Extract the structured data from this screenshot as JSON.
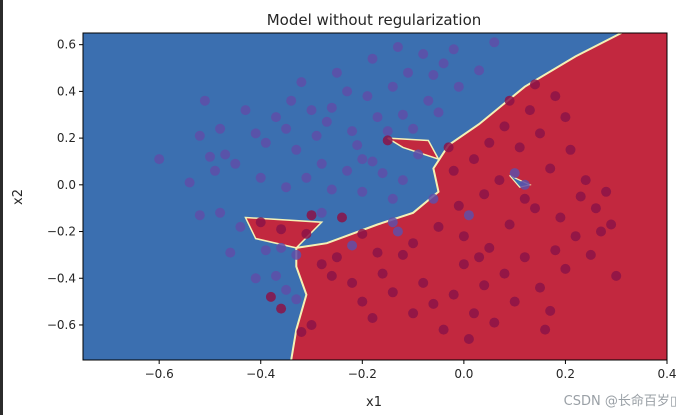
{
  "chart_data": {
    "type": "scatter",
    "title": "Model without regularization",
    "xlabel": "x1",
    "ylabel": "x2",
    "xlim": [
      -0.75,
      0.4
    ],
    "ylim": [
      -0.75,
      0.65
    ],
    "xticks": [
      "−0.6",
      "−0.4",
      "−0.2",
      "0.0",
      "0.2",
      "0.4"
    ],
    "yticks": [
      "0.6",
      "0.4",
      "0.2",
      "0.0",
      "−0.2",
      "−0.4",
      "−0.6"
    ],
    "grid": false,
    "legend": "none",
    "colors": {
      "region_class_0": "#3b6fb0",
      "region_class_1": "#c2283f",
      "boundary": "#f4f1b6",
      "points_class_0": "#5f4fa8",
      "points_class_1": "#8c1348"
    },
    "decision_boundary": [
      [
        -0.34,
        -0.75
      ],
      [
        -0.33,
        -0.62
      ],
      [
        -0.31,
        -0.47
      ],
      [
        -0.33,
        -0.35
      ],
      [
        -0.33,
        -0.27
      ],
      [
        -0.27,
        -0.25
      ],
      [
        -0.17,
        -0.17
      ],
      [
        -0.1,
        -0.12
      ],
      [
        -0.05,
        -0.03
      ],
      [
        -0.06,
        0.07
      ],
      [
        -0.03,
        0.17
      ],
      [
        0.03,
        0.26
      ],
      [
        0.12,
        0.42
      ],
      [
        0.22,
        0.55
      ],
      [
        0.31,
        0.65
      ]
    ],
    "series": [
      {
        "class": 0,
        "points": [
          [
            -0.6,
            0.11
          ],
          [
            -0.51,
            0.36
          ],
          [
            -0.52,
            0.21
          ],
          [
            -0.48,
            0.24
          ],
          [
            -0.49,
            0.06
          ],
          [
            -0.54,
            0.01
          ],
          [
            -0.5,
            0.12
          ],
          [
            -0.47,
            0.13
          ],
          [
            -0.45,
            0.09
          ],
          [
            -0.43,
            0.32
          ],
          [
            -0.41,
            0.22
          ],
          [
            -0.39,
            0.18
          ],
          [
            -0.4,
            0.03
          ],
          [
            -0.37,
            0.29
          ],
          [
            -0.35,
            0.24
          ],
          [
            -0.34,
            0.36
          ],
          [
            -0.33,
            0.15
          ],
          [
            -0.32,
            0.44
          ],
          [
            -0.3,
            0.32
          ],
          [
            -0.29,
            0.21
          ],
          [
            -0.28,
            0.09
          ],
          [
            -0.27,
            0.27
          ],
          [
            -0.26,
            0.33
          ],
          [
            -0.25,
            0.48
          ],
          [
            -0.23,
            0.4
          ],
          [
            -0.22,
            0.23
          ],
          [
            -0.21,
            0.17
          ],
          [
            -0.2,
            0.11
          ],
          [
            -0.19,
            0.38
          ],
          [
            -0.18,
            0.54
          ],
          [
            -0.17,
            0.29
          ],
          [
            -0.16,
            0.05
          ],
          [
            -0.15,
            0.23
          ],
          [
            -0.14,
            0.42
          ],
          [
            -0.13,
            0.59
          ],
          [
            -0.12,
            0.3
          ],
          [
            -0.11,
            0.48
          ],
          [
            -0.1,
            0.24
          ],
          [
            -0.09,
            0.13
          ],
          [
            -0.08,
            0.56
          ],
          [
            -0.07,
            0.36
          ],
          [
            -0.06,
            0.47
          ],
          [
            -0.05,
            0.31
          ],
          [
            -0.04,
            0.52
          ],
          [
            -0.02,
            0.58
          ],
          [
            -0.01,
            0.42
          ],
          [
            0.03,
            0.49
          ],
          [
            0.06,
            0.61
          ],
          [
            -0.35,
            -0.01
          ],
          [
            -0.31,
            0.03
          ],
          [
            -0.26,
            -0.02
          ],
          [
            -0.23,
            0.06
          ],
          [
            -0.2,
            -0.03
          ],
          [
            -0.18,
            0.1
          ],
          [
            -0.14,
            -0.06
          ],
          [
            -0.12,
            0.02
          ],
          [
            -0.36,
            -0.27
          ],
          [
            -0.33,
            -0.3
          ],
          [
            -0.28,
            -0.12
          ],
          [
            -0.22,
            -0.26
          ],
          [
            -0.14,
            -0.16
          ],
          [
            -0.13,
            -0.2
          ],
          [
            -0.41,
            -0.4
          ],
          [
            -0.39,
            -0.28
          ],
          [
            -0.37,
            -0.39
          ],
          [
            -0.35,
            -0.45
          ],
          [
            -0.33,
            -0.49
          ],
          [
            -0.44,
            -0.18
          ],
          [
            -0.48,
            -0.12
          ],
          [
            -0.52,
            -0.13
          ],
          [
            -0.46,
            -0.29
          ],
          [
            -0.06,
            -0.06
          ],
          [
            0.01,
            -0.13
          ],
          [
            0.1,
            0.05
          ],
          [
            0.12,
            0.0
          ]
        ]
      },
      {
        "class": 1,
        "points": [
          [
            -0.15,
            0.19
          ],
          [
            -0.3,
            -0.13
          ],
          [
            -0.4,
            -0.16
          ],
          [
            -0.36,
            -0.19
          ],
          [
            -0.31,
            -0.21
          ],
          [
            -0.38,
            -0.48
          ],
          [
            -0.36,
            -0.53
          ],
          [
            -0.32,
            -0.63
          ],
          [
            -0.3,
            -0.6
          ],
          [
            -0.28,
            -0.34
          ],
          [
            -0.25,
            -0.31
          ],
          [
            -0.22,
            -0.42
          ],
          [
            -0.2,
            -0.5
          ],
          [
            -0.18,
            -0.57
          ],
          [
            -0.16,
            -0.38
          ],
          [
            -0.14,
            -0.46
          ],
          [
            -0.12,
            -0.3
          ],
          [
            -0.1,
            -0.55
          ],
          [
            -0.08,
            -0.42
          ],
          [
            -0.06,
            -0.51
          ],
          [
            -0.04,
            -0.62
          ],
          [
            -0.02,
            -0.47
          ],
          [
            0.0,
            -0.34
          ],
          [
            0.02,
            -0.55
          ],
          [
            0.04,
            -0.43
          ],
          [
            0.06,
            -0.59
          ],
          [
            0.08,
            -0.38
          ],
          [
            0.1,
            -0.5
          ],
          [
            0.12,
            -0.31
          ],
          [
            0.15,
            -0.44
          ],
          [
            0.18,
            -0.28
          ],
          [
            0.2,
            -0.36
          ],
          [
            0.22,
            -0.22
          ],
          [
            0.25,
            -0.3
          ],
          [
            0.27,
            -0.2
          ],
          [
            0.3,
            -0.39
          ],
          [
            0.17,
            -0.54
          ],
          [
            0.01,
            -0.66
          ],
          [
            -0.1,
            -0.25
          ],
          [
            -0.05,
            -0.18
          ],
          [
            0.0,
            -0.22
          ],
          [
            0.05,
            -0.27
          ],
          [
            0.09,
            -0.17
          ],
          [
            0.14,
            -0.1
          ],
          [
            0.19,
            -0.14
          ],
          [
            0.23,
            -0.05
          ],
          [
            0.26,
            -0.1
          ],
          [
            0.29,
            -0.17
          ],
          [
            -0.02,
            0.06
          ],
          [
            0.02,
            0.11
          ],
          [
            0.05,
            0.18
          ],
          [
            0.08,
            0.25
          ],
          [
            0.11,
            0.16
          ],
          [
            0.13,
            0.32
          ],
          [
            0.15,
            0.22
          ],
          [
            0.18,
            0.38
          ],
          [
            0.2,
            0.29
          ],
          [
            0.09,
            0.36
          ],
          [
            0.17,
            0.07
          ],
          [
            0.21,
            0.15
          ],
          [
            0.24,
            0.02
          ],
          [
            0.28,
            -0.03
          ],
          [
            0.04,
            -0.04
          ],
          [
            -0.01,
            -0.09
          ],
          [
            0.07,
            0.02
          ],
          [
            0.12,
            -0.06
          ],
          [
            -0.2,
            -0.21
          ],
          [
            -0.24,
            -0.14
          ],
          [
            -0.17,
            -0.29
          ],
          [
            -0.26,
            -0.39
          ],
          [
            0.14,
            0.43
          ],
          [
            0.16,
            -0.62
          ],
          [
            -0.03,
            0.16
          ],
          [
            0.03,
            -0.31
          ]
        ]
      }
    ]
  },
  "watermark": "CSDN @长命百岁▯"
}
